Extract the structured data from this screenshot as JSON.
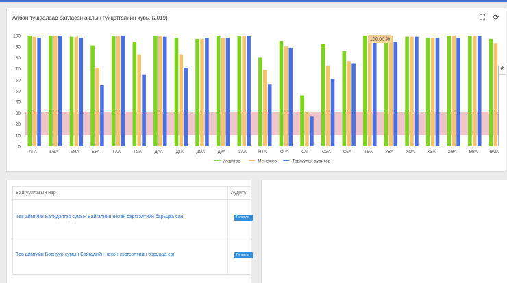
{
  "header": {
    "accent": "#3f6fc4"
  },
  "chart_card": {
    "title": "Албан тушаалаар батласан ажлын гүйцэтгэлийн хувь. (2019)",
    "expand_icon": "expand-icon",
    "refresh_icon": "refresh-icon",
    "tooltip": "100.00 %"
  },
  "chart_data": {
    "type": "bar",
    "categories": [
      "АРА",
      "БӨА",
      "БНА",
      "БУА",
      "ГАА",
      "ГСА",
      "ДАА",
      "ДГА",
      "ДОА",
      "ДУА",
      "ЗАА",
      "НТАГ",
      "ОРА",
      "САГ",
      "СЭА",
      "СБА",
      "ТӨА",
      "УВА",
      "ХОА",
      "ХЭА",
      "ХӨА",
      "ӨВА",
      "ӨМА"
    ],
    "series": [
      {
        "name": "Аудитор",
        "color": "#7ed321",
        "values": [
          100,
          100,
          99,
          91,
          100,
          94,
          100,
          98,
          97,
          100,
          100,
          80,
          95,
          46,
          92,
          86,
          100,
          100,
          99,
          98,
          100,
          100,
          97
        ]
      },
      {
        "name": "Менежер",
        "color": "#f5c46e",
        "values": [
          99,
          100,
          99,
          71,
          100,
          83,
          100,
          83,
          97,
          98,
          100,
          69,
          90,
          31,
          73,
          77,
          100,
          100,
          99,
          98,
          100,
          100,
          93
        ]
      },
      {
        "name": "Тэргүүлэх аудитор",
        "color": "#4a6fe3",
        "values": [
          98,
          100,
          98,
          55,
          100,
          65,
          99,
          71,
          98,
          98,
          100,
          56,
          89,
          27,
          61,
          75,
          100,
          94,
          99,
          98,
          98,
          100,
          73
        ]
      }
    ],
    "ylim": [
      0,
      100
    ],
    "yticks": [
      0,
      10,
      20,
      30,
      40,
      50,
      60,
      70,
      80,
      90,
      100
    ],
    "threshold_band": [
      10,
      30
    ],
    "threshold_line": 30,
    "grid": false,
    "legend": "bottom-center"
  },
  "table": {
    "headers": [
      "Байгууллагын нэр",
      "Аудиты"
    ],
    "rows": [
      {
        "name": "Төв аймгийн Баяндэлгэр сумын Байгалийн нөхөн сэргээлтийн барьцаа сан",
        "badge": "Төлөвлө"
      },
      {
        "name": "Төв аймгийн Борнуур сумын Байгалийн нөхөн сэргээлтийн барьцаа сан",
        "badge": "Төлөвлө"
      }
    ]
  }
}
